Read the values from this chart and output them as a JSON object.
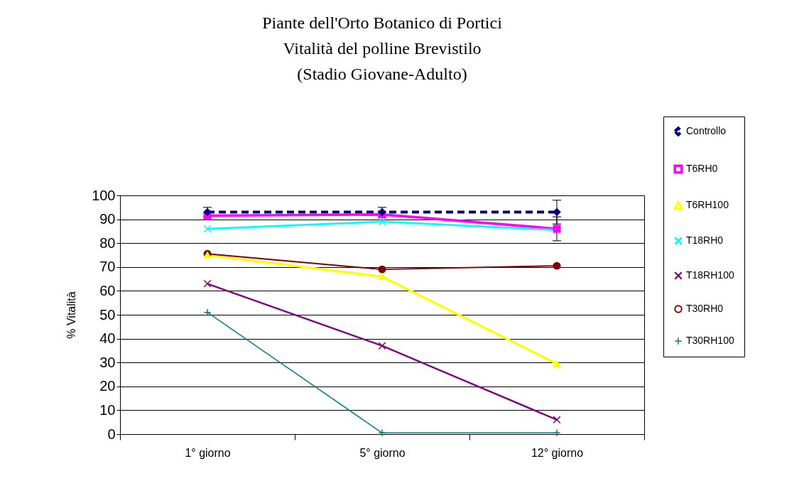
{
  "chart_data": {
    "type": "line",
    "title": "Piante dell'Orto Botanico di Portici\nVitalità del polline Brevistilo\n(Stadio Giovane-Adulto)",
    "ylabel": "% Vitalità",
    "categories": [
      "1° giorno",
      "5° giorno",
      "12° giorno"
    ],
    "ylim": [
      0,
      100
    ],
    "yticks": [
      0,
      10,
      20,
      30,
      40,
      50,
      60,
      70,
      80,
      90,
      100
    ],
    "grid": "y",
    "legend": "right",
    "series": [
      {
        "name": "Controllo",
        "color": "#000080",
        "marker": "diamond",
        "line_style": "dashed",
        "values": [
          93,
          93,
          93
        ],
        "errors": [
          2,
          2,
          5
        ]
      },
      {
        "name": "T6RH0",
        "color": "#ff00ff",
        "marker": "square",
        "line_style": "solid",
        "values": [
          91.5,
          92,
          86
        ],
        "errors": [
          null,
          null,
          5
        ]
      },
      {
        "name": "T6RH100",
        "color": "#ffff00",
        "marker": "triangle",
        "line_style": "solid",
        "values": [
          75,
          66,
          29.5
        ]
      },
      {
        "name": "T18RH0",
        "color": "#00ffff",
        "marker": "cross",
        "line_style": "solid",
        "values": [
          86,
          89,
          85.5
        ]
      },
      {
        "name": "T18RH100",
        "color": "#800080",
        "marker": "cross",
        "line_style": "solid",
        "values": [
          63,
          37,
          6
        ]
      },
      {
        "name": "T30RH0",
        "color": "#800000",
        "marker": "circle",
        "line_style": "solid",
        "values": [
          75.5,
          69,
          70.5
        ]
      },
      {
        "name": "T30RH100",
        "color": "#008080",
        "marker": "plus",
        "line_style": "solid",
        "values": [
          51,
          0.5,
          0.5
        ]
      }
    ]
  }
}
